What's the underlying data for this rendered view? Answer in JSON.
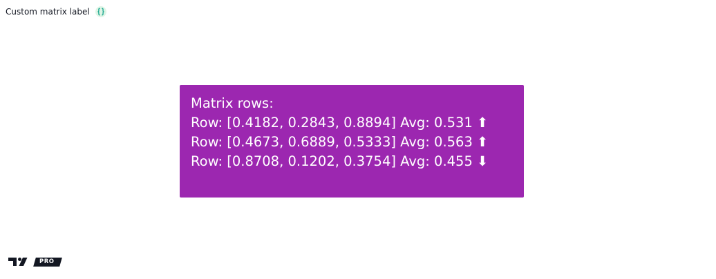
{
  "header": {
    "title": "Custom matrix label",
    "source_icon": "curly-braces-icon",
    "badge_color": "#dff5e6",
    "icon_color": "#22ab94"
  },
  "label": {
    "background": "#9c27b0",
    "text_color": "#ffffff",
    "heading": "Matrix rows:",
    "rows": [
      {
        "text": "Row: [0.4182, 0.2843, 0.8894] Avg: 0.531",
        "trend": "up",
        "arrow": "⬆"
      },
      {
        "text": "Row: [0.4673, 0.6889, 0.5333] Avg: 0.563",
        "trend": "up",
        "arrow": "⬆"
      },
      {
        "text": "Row: [0.8708, 0.1202, 0.3754] Avg: 0.455",
        "trend": "down",
        "arrow": "⬇"
      }
    ]
  },
  "branding": {
    "logo_icon": "tradingview-logo-icon",
    "badge": "PRO"
  }
}
